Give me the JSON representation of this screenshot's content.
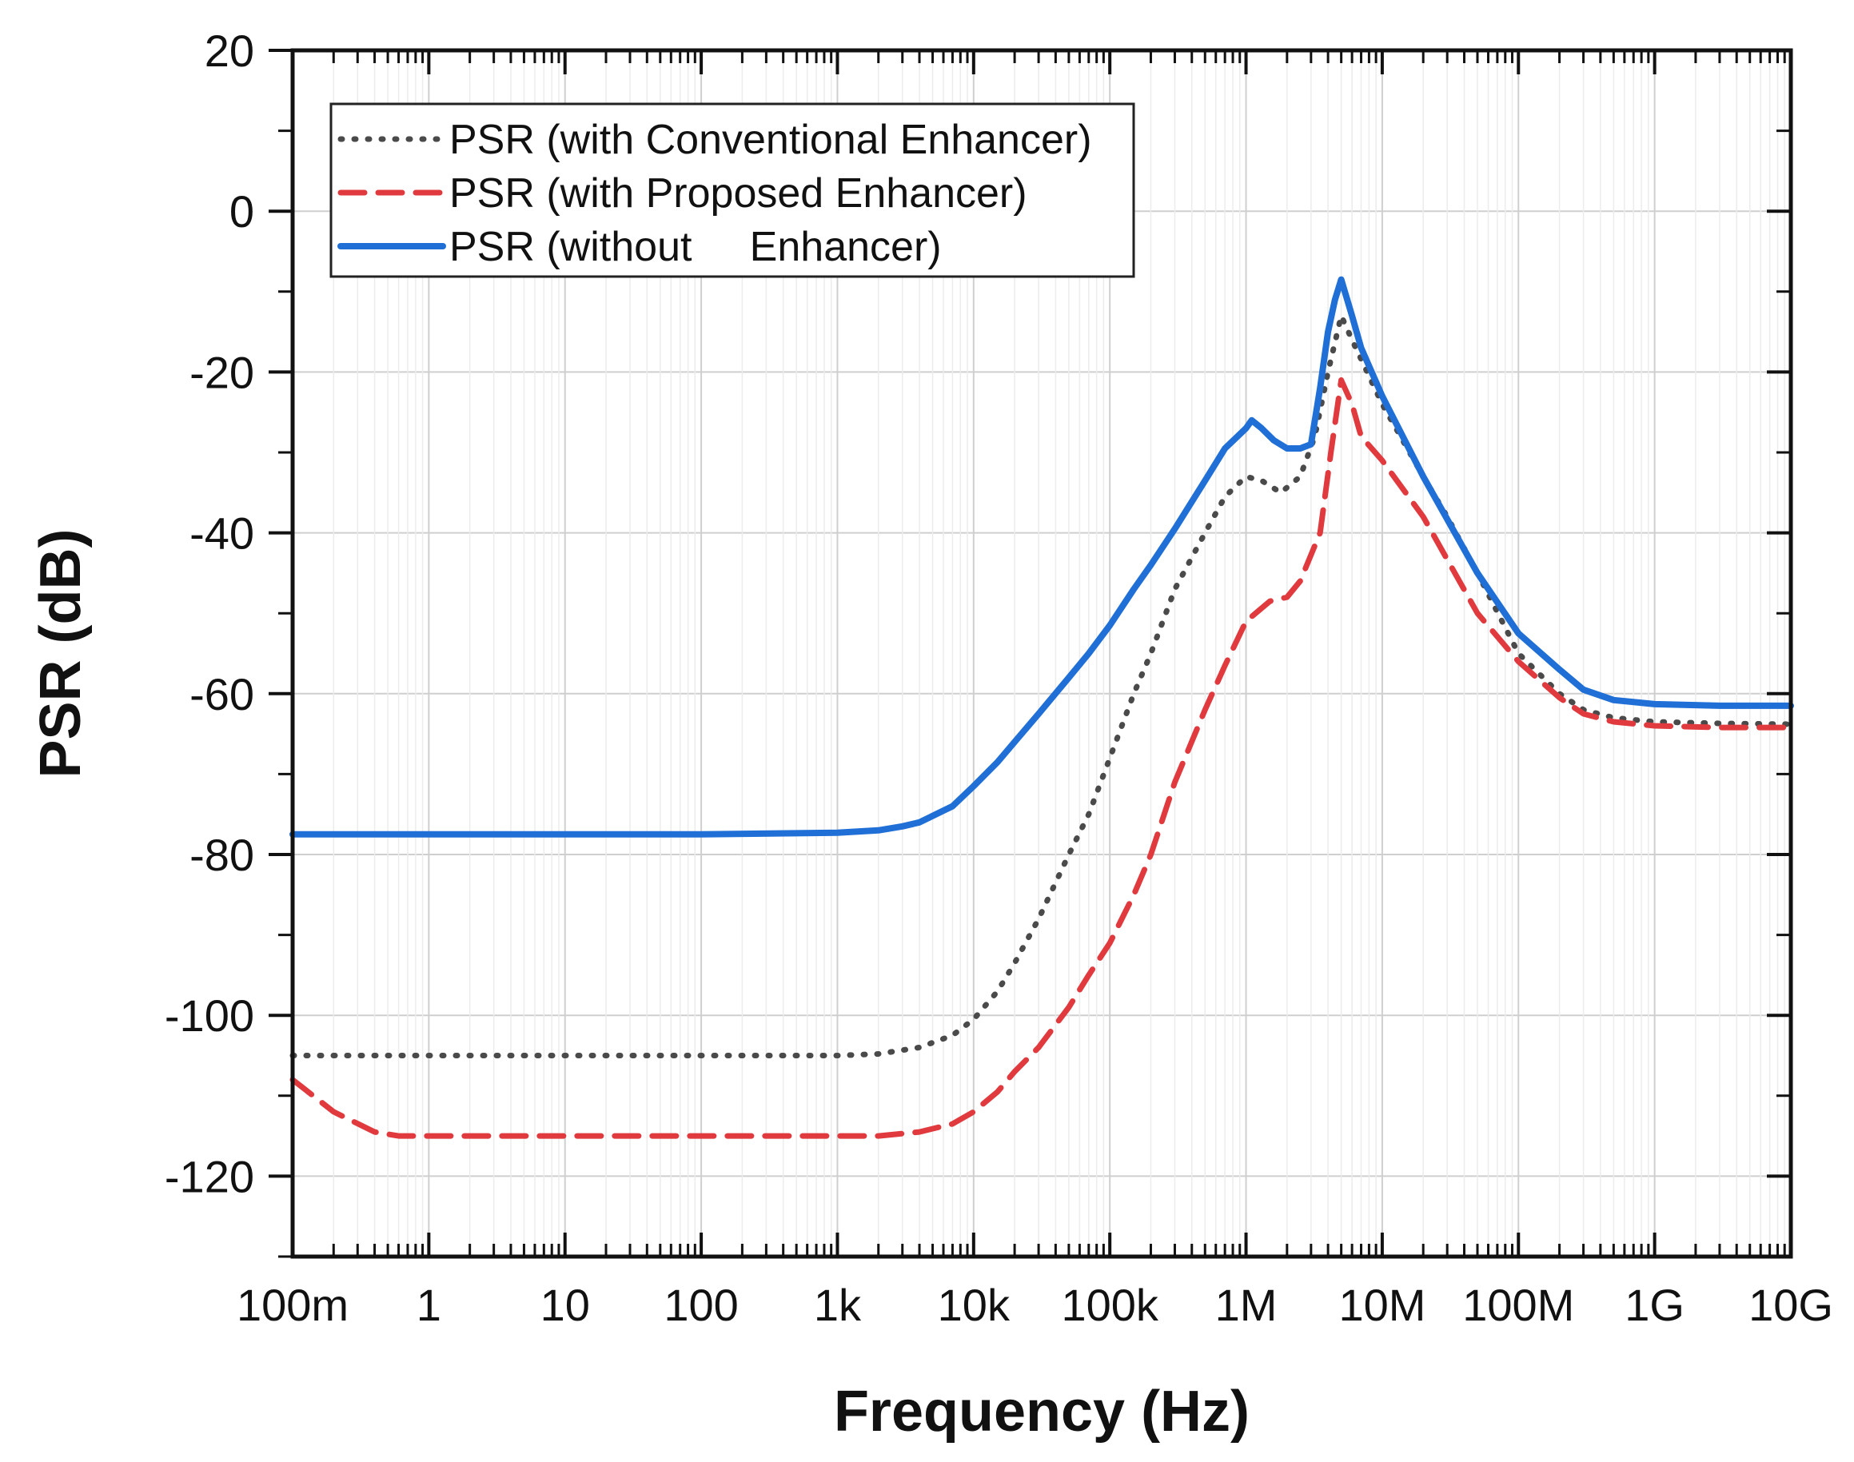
{
  "chart_data": {
    "type": "line",
    "xlabel": "Frequency (Hz)",
    "ylabel": "PSR (dB)",
    "xscale": "log",
    "xlim": [
      0.1,
      10000000000
    ],
    "ylim": [
      -130,
      20
    ],
    "grid": true,
    "legend_position": "top-left",
    "x_ticks": [
      {
        "value": 0.1,
        "label": "100m"
      },
      {
        "value": 1,
        "label": "1"
      },
      {
        "value": 10,
        "label": "10"
      },
      {
        "value": 100,
        "label": "100"
      },
      {
        "value": 1000,
        "label": "1k"
      },
      {
        "value": 10000,
        "label": "10k"
      },
      {
        "value": 100000,
        "label": "100k"
      },
      {
        "value": 1000000,
        "label": "1M"
      },
      {
        "value": 10000000,
        "label": "10M"
      },
      {
        "value": 100000000,
        "label": "100M"
      },
      {
        "value": 1000000000,
        "label": "1G"
      },
      {
        "value": 10000000000,
        "label": "10G"
      }
    ],
    "y_ticks": [
      {
        "value": 20,
        "label": "20"
      },
      {
        "value": 0,
        "label": "0"
      },
      {
        "value": -20,
        "label": "-20"
      },
      {
        "value": -40,
        "label": "-40"
      },
      {
        "value": -60,
        "label": "-60"
      },
      {
        "value": -80,
        "label": "-80"
      },
      {
        "value": -100,
        "label": "-100"
      },
      {
        "value": -120,
        "label": "-120"
      }
    ],
    "series": [
      {
        "name": "PSR (with Conventional Enhancer)",
        "color": "#4a4a4a",
        "style": "dotted",
        "x": [
          0.1,
          1,
          10,
          100,
          1000,
          2000,
          4000,
          7000,
          10000,
          15000,
          20000,
          30000,
          50000,
          70000,
          100000,
          150000,
          200000,
          300000,
          500000,
          700000,
          1000000,
          1300000,
          1800000,
          2500000,
          3200000,
          4000000,
          5000000,
          6000000,
          8000000,
          10000000,
          20000000,
          30000000,
          50000000,
          100000000,
          200000000,
          300000000,
          500000000,
          1000000000,
          3000000000,
          10000000000
        ],
        "y": [
          -105,
          -105,
          -105,
          -105,
          -105,
          -104.8,
          -104,
          -102.5,
          -100.5,
          -97,
          -93.5,
          -88,
          -80,
          -75,
          -68,
          -60,
          -55,
          -47,
          -40,
          -35.5,
          -33,
          -33.5,
          -35,
          -33,
          -28,
          -20,
          -13,
          -16,
          -20.5,
          -24,
          -33,
          -38,
          -45,
          -55,
          -60,
          -62,
          -63,
          -63.5,
          -63.7,
          -63.8
        ]
      },
      {
        "name": "PSR (with Proposed Enhancer)",
        "color": "#e03a3e",
        "style": "dashed",
        "x": [
          0.1,
          0.2,
          0.4,
          0.6,
          1,
          10,
          100,
          1000,
          2000,
          4000,
          7000,
          10000,
          15000,
          20000,
          30000,
          50000,
          70000,
          100000,
          150000,
          200000,
          300000,
          500000,
          700000,
          1000000,
          1500000,
          2000000,
          2500000,
          3500000,
          4200000,
          5000000,
          6000000,
          7000000,
          10000000,
          20000000,
          50000000,
          100000000,
          200000000,
          300000000,
          500000000,
          1000000000,
          3000000000,
          10000000000
        ],
        "y": [
          -108,
          -112,
          -114.5,
          -115,
          -115,
          -115,
          -115,
          -115,
          -115,
          -114.5,
          -113.5,
          -112,
          -109.5,
          -107,
          -104,
          -99,
          -95,
          -91,
          -85,
          -80,
          -71,
          -62,
          -56.5,
          -51,
          -48.5,
          -48,
          -46,
          -40,
          -30,
          -21,
          -24,
          -28,
          -31,
          -38,
          -50,
          -56,
          -60.5,
          -62.5,
          -63.5,
          -64,
          -64.2,
          -64.2
        ]
      },
      {
        "name": "PSR (without     Enhancer)",
        "color": "#1f6fd6",
        "style": "solid",
        "x": [
          0.1,
          1,
          10,
          100,
          1000,
          2000,
          3000,
          4000,
          7000,
          10000,
          15000,
          20000,
          30000,
          50000,
          70000,
          100000,
          150000,
          200000,
          300000,
          500000,
          700000,
          1000000,
          1100000,
          1300000,
          1600000,
          2000000,
          2500000,
          3000000,
          3500000,
          4000000,
          4500000,
          5000000,
          6000000,
          7000000,
          10000000,
          20000000,
          50000000,
          100000000,
          200000000,
          300000000,
          500000000,
          1000000000,
          3000000000,
          10000000000
        ],
        "y": [
          -77.5,
          -77.5,
          -77.5,
          -77.5,
          -77.3,
          -77,
          -76.5,
          -76,
          -74,
          -71.5,
          -68.5,
          -66,
          -62.5,
          -58,
          -55,
          -51.5,
          -47,
          -44,
          -39.5,
          -33.5,
          -29.5,
          -27,
          -26,
          -27,
          -28.5,
          -29.5,
          -29.5,
          -29,
          -22,
          -15,
          -11,
          -8.5,
          -13,
          -17,
          -23,
          -33,
          -45,
          -52.5,
          -57,
          -59.5,
          -60.8,
          -61.3,
          -61.5,
          -61.5
        ]
      }
    ]
  }
}
